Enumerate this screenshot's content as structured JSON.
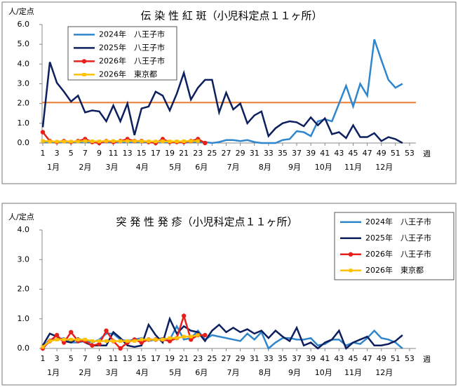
{
  "chart_data": [
    {
      "type": "line",
      "title": "伝 染 性 紅 斑（小児科定点１１ヶ所）",
      "y_label": "人/定点",
      "x_label": "週",
      "months": [
        "1月",
        "2月",
        "3月",
        "4月",
        "5月",
        "6月",
        "7月",
        "8月",
        "9月",
        "10月",
        "11月",
        "12月"
      ],
      "x": [
        1,
        2,
        3,
        4,
        5,
        6,
        7,
        8,
        9,
        10,
        11,
        12,
        13,
        14,
        15,
        16,
        17,
        18,
        19,
        20,
        21,
        22,
        23,
        24,
        25,
        26,
        27,
        28,
        29,
        30,
        31,
        32,
        33,
        34,
        35,
        36,
        37,
        38,
        39,
        40,
        41,
        42,
        43,
        44,
        45,
        46,
        47,
        48,
        49,
        50,
        51,
        52,
        53
      ],
      "xlim": [
        0.9,
        53.9
      ],
      "xticks": [
        1,
        3,
        5,
        7,
        9,
        11,
        13,
        15,
        17,
        19,
        21,
        23,
        25,
        27,
        29,
        31,
        33,
        35,
        37,
        39,
        41,
        43,
        45,
        47,
        49,
        51,
        53
      ],
      "ylim": [
        0,
        6
      ],
      "yticks": [
        {
          "value": 0,
          "label": "0.0"
        },
        {
          "value": 1,
          "label": "1.0"
        },
        {
          "value": 2,
          "label": "2.0"
        },
        {
          "value": 3,
          "label": "3.0"
        },
        {
          "value": 4,
          "label": "4.0"
        },
        {
          "value": 5,
          "label": "5.0"
        },
        {
          "value": 6,
          "label": "6.0"
        }
      ],
      "reference_line": {
        "value": 2.05,
        "color": "#ed7d31"
      },
      "legend": "upper-left",
      "series": [
        {
          "name": "2024年　八王子市",
          "color": "#2f86cc",
          "marker": null,
          "values": [
            0.05,
            0.05,
            0.05,
            0.05,
            0.05,
            0.05,
            0.05,
            0.05,
            0.05,
            0.05,
            0.05,
            0.05,
            0.05,
            0.05,
            0.05,
            0.05,
            0.05,
            0.05,
            0.05,
            0.05,
            0.05,
            0.05,
            0.05,
            0.05,
            0.0,
            0.05,
            0.15,
            0.15,
            0.1,
            0.15,
            0.05,
            0.0,
            0.0,
            0.0,
            0.15,
            0.2,
            0.6,
            0.55,
            0.35,
            1.1,
            1.2,
            1.1,
            2.0,
            2.9,
            1.85,
            3.0,
            2.4,
            5.25,
            4.2,
            3.2,
            2.8,
            3.0,
            null
          ]
        },
        {
          "name": "2025年　八王子市",
          "color": "#0c1f5e",
          "marker": null,
          "values": [
            0.8,
            4.1,
            3.05,
            2.6,
            2.1,
            2.4,
            1.55,
            1.65,
            1.6,
            1.1,
            1.9,
            1.1,
            2.0,
            0.4,
            1.75,
            1.85,
            2.6,
            2.4,
            1.65,
            2.5,
            3.55,
            2.2,
            2.8,
            3.2,
            3.2,
            1.55,
            2.55,
            1.7,
            2.0,
            1.0,
            1.4,
            1.6,
            0.35,
            0.75,
            1.0,
            1.1,
            1.05,
            0.85,
            1.3,
            0.9,
            1.25,
            0.45,
            0.55,
            0.25,
            0.9,
            0.3,
            0.3,
            0.5,
            0.1,
            0.3,
            0.2,
            0.0,
            null
          ]
        },
        {
          "name": "2026年　八王子市",
          "color": "#e8201c",
          "marker": "circle",
          "values": [
            0.55,
            0.1,
            0.05,
            0.1,
            0.05,
            0.1,
            0.2,
            0.05,
            0.0,
            0.1,
            0.05,
            0.1,
            0.2,
            0.1,
            0.1,
            0.05,
            0.0,
            0.2,
            0.05,
            0.05,
            0.05,
            0.1,
            0.2,
            0.0,
            null,
            null,
            null,
            null,
            null,
            null,
            null,
            null,
            null,
            null,
            null,
            null,
            null,
            null,
            null,
            null,
            null,
            null,
            null,
            null,
            null,
            null,
            null,
            null,
            null,
            null,
            null,
            null,
            null
          ]
        },
        {
          "name": "2026年　東京都",
          "color": "#ffc000",
          "marker": "square",
          "values": [
            0.1,
            0.08,
            0.07,
            0.08,
            0.07,
            0.08,
            0.1,
            0.09,
            0.08,
            0.1,
            0.1,
            0.09,
            0.1,
            0.1,
            0.09,
            0.08,
            0.08,
            0.09,
            0.08,
            0.08,
            0.09,
            0.1,
            0.1,
            null,
            null,
            null,
            null,
            null,
            null,
            null,
            null,
            null,
            null,
            null,
            null,
            null,
            null,
            null,
            null,
            null,
            null,
            null,
            null,
            null,
            null,
            null,
            null,
            null,
            null,
            null,
            null,
            null,
            null
          ]
        }
      ]
    },
    {
      "type": "line",
      "title": "突 発 性 発 疹（小児科定点１１ヶ所）",
      "y_label": "人/定点",
      "x_label": "週",
      "months": [
        "1月",
        "2月",
        "3月",
        "4月",
        "5月",
        "6月",
        "7月",
        "8月",
        "9月",
        "10月",
        "11月",
        "12月"
      ],
      "x": [
        1,
        2,
        3,
        4,
        5,
        6,
        7,
        8,
        9,
        10,
        11,
        12,
        13,
        14,
        15,
        16,
        17,
        18,
        19,
        20,
        21,
        22,
        23,
        24,
        25,
        26,
        27,
        28,
        29,
        30,
        31,
        32,
        33,
        34,
        35,
        36,
        37,
        38,
        39,
        40,
        41,
        42,
        43,
        44,
        45,
        46,
        47,
        48,
        49,
        50,
        51,
        52,
        53
      ],
      "xlim": [
        0.9,
        53.9
      ],
      "xticks": [
        1,
        3,
        5,
        7,
        9,
        11,
        13,
        15,
        17,
        19,
        21,
        23,
        25,
        27,
        29,
        31,
        33,
        35,
        37,
        39,
        41,
        43,
        45,
        47,
        49,
        51,
        53
      ],
      "ylim": [
        0,
        4
      ],
      "yticks": [
        {
          "value": 0,
          "label": "0.0"
        },
        {
          "value": 1,
          "label": "1.0"
        },
        {
          "value": 2,
          "label": "2.0"
        },
        {
          "value": 3,
          "label": "3.0"
        },
        {
          "value": 4,
          "label": "4.0"
        }
      ],
      "legend": "upper-right",
      "series": [
        {
          "name": "2024年　八王子市",
          "color": "#2f86cc",
          "marker": null,
          "values": [
            0.05,
            0.3,
            0.3,
            0.35,
            0.2,
            0.2,
            0.25,
            0.2,
            0.3,
            0.5,
            0.5,
            0.3,
            0.25,
            0.3,
            0.35,
            0.25,
            0.3,
            0.35,
            0.3,
            0.75,
            0.3,
            0.35,
            0.6,
            0.3,
            0.45,
            0.4,
            0.35,
            0.3,
            0.25,
            0.5,
            0.3,
            0.55,
            0.0,
            0.2,
            0.35,
            0.35,
            0.3,
            0.3,
            0.35,
            0.1,
            0.15,
            0.3,
            0.3,
            0.1,
            0.2,
            0.15,
            0.35,
            0.6,
            0.35,
            0.3,
            0.2,
            0.0,
            null
          ]
        },
        {
          "name": "2025年　八王子市",
          "color": "#0c1f5e",
          "marker": null,
          "values": [
            0.1,
            0.5,
            0.4,
            0.25,
            0.2,
            0.35,
            0.2,
            0.1,
            0.1,
            0.1,
            0.55,
            0.35,
            0.1,
            0.05,
            0.1,
            0.8,
            0.45,
            0.2,
            1.0,
            0.5,
            0.75,
            0.6,
            0.55,
            0.25,
            0.6,
            0.8,
            0.55,
            0.7,
            0.55,
            0.65,
            0.5,
            0.6,
            0.35,
            0.6,
            0.4,
            0.25,
            0.7,
            0.1,
            0.2,
            0.0,
            0.2,
            0.3,
            0.6,
            0.0,
            0.2,
            0.3,
            0.4,
            0.1,
            0.1,
            0.15,
            0.25,
            0.45,
            null
          ]
        },
        {
          "name": "2026年　八王子市",
          "color": "#e8201c",
          "marker": "circle",
          "values": [
            0.0,
            0.25,
            0.45,
            0.2,
            0.55,
            0.25,
            0.25,
            0.1,
            0.15,
            0.6,
            0.25,
            0.0,
            0.2,
            0.3,
            0.2,
            0.3,
            0.3,
            0.3,
            0.25,
            0.35,
            1.1,
            0.3,
            0.45,
            0.45,
            null,
            null,
            null,
            null,
            null,
            null,
            null,
            null,
            null,
            null,
            null,
            null,
            null,
            null,
            null,
            null,
            null,
            null,
            null,
            null,
            null,
            null,
            null,
            null,
            null,
            null,
            null,
            null,
            null
          ]
        },
        {
          "name": "2026年　東京都",
          "color": "#ffc000",
          "marker": "square",
          "values": [
            0.05,
            0.25,
            0.3,
            0.3,
            0.3,
            0.3,
            0.3,
            0.25,
            0.25,
            0.25,
            0.25,
            0.25,
            0.25,
            0.25,
            0.3,
            0.3,
            0.3,
            0.3,
            0.35,
            0.35,
            0.4,
            0.4,
            0.45,
            null,
            null,
            null,
            null,
            null,
            null,
            null,
            null,
            null,
            null,
            null,
            null,
            null,
            null,
            null,
            null,
            null,
            null,
            null,
            null,
            null,
            null,
            null,
            null,
            null,
            null,
            null,
            null,
            null,
            null
          ]
        }
      ]
    }
  ]
}
